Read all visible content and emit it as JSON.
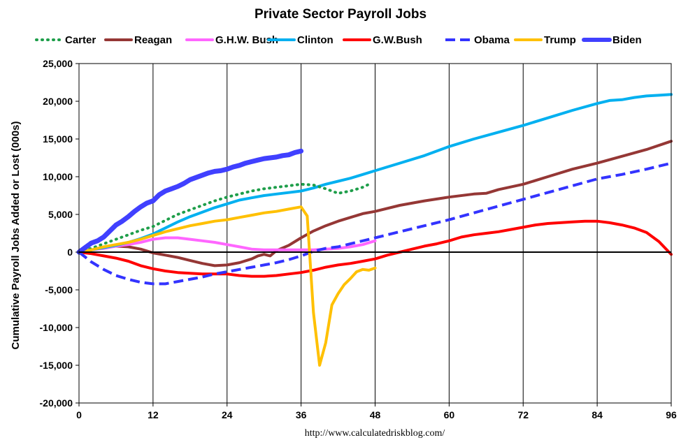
{
  "chart_data": {
    "type": "line",
    "title": "Private Sector Payroll Jobs",
    "xlabel": "",
    "ylabel": "Cumulative Payroll Jobs Added or  Lost (000s)",
    "source": "http://www.calculatedriskblog.com/",
    "xlim": [
      0,
      96
    ],
    "ylim": [
      -20000,
      25000
    ],
    "xticks": [
      0,
      12,
      24,
      36,
      48,
      60,
      72,
      84,
      96
    ],
    "yticks": [
      -20000,
      -15000,
      -10000,
      -5000,
      0,
      5000,
      10000,
      15000,
      20000,
      25000
    ],
    "xtick_labels": [
      "0",
      "12",
      "24",
      "36",
      "48",
      "60",
      "72",
      "84",
      "96"
    ],
    "ytick_labels": [
      "-20,000",
      "-15,000",
      "-10,000",
      "-5,000",
      "0",
      "5,000",
      "10,000",
      "15,000",
      "20,000",
      "25,000"
    ],
    "grid": "vertical",
    "legend_position": "top",
    "series": [
      {
        "name": "Carter",
        "color": "#1e9e4a",
        "style": "dotted",
        "points": [
          [
            0,
            0
          ],
          [
            2,
            500
          ],
          [
            4,
            1100
          ],
          [
            6,
            1700
          ],
          [
            8,
            2300
          ],
          [
            10,
            2900
          ],
          [
            12,
            3400
          ],
          [
            14,
            4200
          ],
          [
            16,
            5000
          ],
          [
            18,
            5600
          ],
          [
            20,
            6200
          ],
          [
            22,
            6800
          ],
          [
            24,
            7300
          ],
          [
            26,
            7700
          ],
          [
            28,
            8100
          ],
          [
            30,
            8400
          ],
          [
            32,
            8600
          ],
          [
            34,
            8800
          ],
          [
            36,
            9000
          ],
          [
            38,
            8900
          ],
          [
            40,
            8400
          ],
          [
            42,
            7800
          ],
          [
            44,
            8100
          ],
          [
            46,
            8600
          ],
          [
            47,
            9000
          ]
        ]
      },
      {
        "name": "Reagan",
        "color": "#953735",
        "style": "solid",
        "points": [
          [
            0,
            0
          ],
          [
            2,
            300
          ],
          [
            4,
            600
          ],
          [
            6,
            800
          ],
          [
            8,
            700
          ],
          [
            10,
            400
          ],
          [
            12,
            -100
          ],
          [
            14,
            -400
          ],
          [
            16,
            -700
          ],
          [
            18,
            -1100
          ],
          [
            20,
            -1500
          ],
          [
            22,
            -1800
          ],
          [
            24,
            -1700
          ],
          [
            26,
            -1400
          ],
          [
            28,
            -900
          ],
          [
            29,
            -500
          ],
          [
            30,
            -300
          ],
          [
            31,
            -500
          ],
          [
            32,
            200
          ],
          [
            34,
            900
          ],
          [
            36,
            1900
          ],
          [
            38,
            2800
          ],
          [
            40,
            3500
          ],
          [
            42,
            4100
          ],
          [
            44,
            4600
          ],
          [
            46,
            5100
          ],
          [
            48,
            5400
          ],
          [
            52,
            6200
          ],
          [
            56,
            6800
          ],
          [
            60,
            7300
          ],
          [
            64,
            7700
          ],
          [
            66,
            7800
          ],
          [
            68,
            8300
          ],
          [
            72,
            9000
          ],
          [
            76,
            10000
          ],
          [
            80,
            11000
          ],
          [
            84,
            11800
          ],
          [
            88,
            12700
          ],
          [
            92,
            13600
          ],
          [
            96,
            14700
          ]
        ]
      },
      {
        "name": "G.H.W. Bush",
        "color": "#ff66ff",
        "style": "solid",
        "points": [
          [
            0,
            0
          ],
          [
            2,
            300
          ],
          [
            4,
            500
          ],
          [
            6,
            800
          ],
          [
            8,
            1000
          ],
          [
            10,
            1300
          ],
          [
            12,
            1700
          ],
          [
            14,
            1900
          ],
          [
            16,
            1900
          ],
          [
            18,
            1700
          ],
          [
            20,
            1500
          ],
          [
            22,
            1300
          ],
          [
            24,
            1000
          ],
          [
            26,
            700
          ],
          [
            28,
            400
          ],
          [
            30,
            300
          ],
          [
            32,
            300
          ],
          [
            34,
            300
          ],
          [
            36,
            300
          ],
          [
            38,
            300
          ],
          [
            40,
            400
          ],
          [
            42,
            500
          ],
          [
            44,
            700
          ],
          [
            46,
            1000
          ],
          [
            48,
            1500
          ]
        ]
      },
      {
        "name": "Clinton",
        "color": "#00b0f0",
        "style": "solid",
        "points": [
          [
            0,
            0
          ],
          [
            2,
            300
          ],
          [
            4,
            600
          ],
          [
            6,
            900
          ],
          [
            8,
            1300
          ],
          [
            10,
            1800
          ],
          [
            12,
            2400
          ],
          [
            14,
            3200
          ],
          [
            16,
            4000
          ],
          [
            18,
            4700
          ],
          [
            20,
            5300
          ],
          [
            22,
            5900
          ],
          [
            24,
            6400
          ],
          [
            26,
            6900
          ],
          [
            28,
            7200
          ],
          [
            30,
            7500
          ],
          [
            32,
            7700
          ],
          [
            34,
            7900
          ],
          [
            36,
            8100
          ],
          [
            38,
            8500
          ],
          [
            40,
            9000
          ],
          [
            42,
            9400
          ],
          [
            44,
            9800
          ],
          [
            46,
            10300
          ],
          [
            48,
            10800
          ],
          [
            52,
            11800
          ],
          [
            56,
            12800
          ],
          [
            60,
            14000
          ],
          [
            64,
            15000
          ],
          [
            68,
            15900
          ],
          [
            72,
            16800
          ],
          [
            76,
            17800
          ],
          [
            80,
            18800
          ],
          [
            84,
            19700
          ],
          [
            86,
            20100
          ],
          [
            88,
            20200
          ],
          [
            90,
            20500
          ],
          [
            92,
            20700
          ],
          [
            94,
            20800
          ],
          [
            96,
            20900
          ]
        ]
      },
      {
        "name": "G.W.Bush",
        "color": "#ff0000",
        "style": "solid",
        "points": [
          [
            0,
            0
          ],
          [
            2,
            -200
          ],
          [
            4,
            -500
          ],
          [
            6,
            -800
          ],
          [
            8,
            -1200
          ],
          [
            10,
            -1800
          ],
          [
            12,
            -2200
          ],
          [
            14,
            -2500
          ],
          [
            16,
            -2700
          ],
          [
            18,
            -2800
          ],
          [
            20,
            -2900
          ],
          [
            22,
            -2900
          ],
          [
            24,
            -2900
          ],
          [
            26,
            -3100
          ],
          [
            28,
            -3200
          ],
          [
            30,
            -3200
          ],
          [
            32,
            -3100
          ],
          [
            34,
            -2900
          ],
          [
            36,
            -2700
          ],
          [
            38,
            -2400
          ],
          [
            40,
            -2000
          ],
          [
            42,
            -1700
          ],
          [
            44,
            -1500
          ],
          [
            46,
            -1200
          ],
          [
            48,
            -900
          ],
          [
            50,
            -400
          ],
          [
            52,
            0
          ],
          [
            54,
            400
          ],
          [
            56,
            800
          ],
          [
            58,
            1100
          ],
          [
            60,
            1500
          ],
          [
            62,
            2000
          ],
          [
            64,
            2300
          ],
          [
            66,
            2500
          ],
          [
            68,
            2700
          ],
          [
            70,
            3000
          ],
          [
            72,
            3300
          ],
          [
            74,
            3600
          ],
          [
            76,
            3800
          ],
          [
            78,
            3900
          ],
          [
            80,
            4000
          ],
          [
            82,
            4100
          ],
          [
            84,
            4100
          ],
          [
            86,
            3900
          ],
          [
            88,
            3600
          ],
          [
            90,
            3200
          ],
          [
            92,
            2600
          ],
          [
            94,
            1400
          ],
          [
            96,
            -300
          ]
        ]
      },
      {
        "name": "Obama",
        "color": "#3333ff",
        "style": "dashed",
        "points": [
          [
            0,
            0
          ],
          [
            2,
            -1300
          ],
          [
            4,
            -2300
          ],
          [
            6,
            -3100
          ],
          [
            8,
            -3600
          ],
          [
            10,
            -4000
          ],
          [
            12,
            -4200
          ],
          [
            14,
            -4200
          ],
          [
            16,
            -3900
          ],
          [
            18,
            -3600
          ],
          [
            20,
            -3300
          ],
          [
            22,
            -2900
          ],
          [
            24,
            -2600
          ],
          [
            26,
            -2300
          ],
          [
            28,
            -2000
          ],
          [
            30,
            -1700
          ],
          [
            32,
            -1400
          ],
          [
            34,
            -1000
          ],
          [
            36,
            -500
          ],
          [
            38,
            100
          ],
          [
            40,
            500
          ],
          [
            42,
            700
          ],
          [
            44,
            1100
          ],
          [
            46,
            1500
          ],
          [
            48,
            1900
          ],
          [
            52,
            2700
          ],
          [
            56,
            3500
          ],
          [
            60,
            4300
          ],
          [
            64,
            5200
          ],
          [
            68,
            6100
          ],
          [
            72,
            7000
          ],
          [
            76,
            7900
          ],
          [
            80,
            8800
          ],
          [
            84,
            9700
          ],
          [
            88,
            10300
          ],
          [
            92,
            11000
          ],
          [
            96,
            11800
          ]
        ]
      },
      {
        "name": "Trump",
        "color": "#ffc000",
        "style": "solid",
        "points": [
          [
            0,
            0
          ],
          [
            2,
            300
          ],
          [
            4,
            700
          ],
          [
            6,
            1000
          ],
          [
            8,
            1300
          ],
          [
            10,
            1700
          ],
          [
            12,
            2200
          ],
          [
            14,
            2700
          ],
          [
            16,
            3100
          ],
          [
            18,
            3500
          ],
          [
            20,
            3800
          ],
          [
            22,
            4100
          ],
          [
            24,
            4300
          ],
          [
            26,
            4600
          ],
          [
            28,
            4900
          ],
          [
            30,
            5200
          ],
          [
            32,
            5400
          ],
          [
            34,
            5700
          ],
          [
            36,
            6000
          ],
          [
            37,
            4800
          ],
          [
            38,
            -8000
          ],
          [
            39,
            -15000
          ],
          [
            40,
            -12000
          ],
          [
            41,
            -7000
          ],
          [
            42,
            -5500
          ],
          [
            43,
            -4300
          ],
          [
            44,
            -3500
          ],
          [
            45,
            -2600
          ],
          [
            46,
            -2300
          ],
          [
            47,
            -2400
          ],
          [
            48,
            -2100
          ]
        ]
      },
      {
        "name": "Biden",
        "color": "#4040ff",
        "style": "thick",
        "points": [
          [
            0,
            0
          ],
          [
            1,
            600
          ],
          [
            2,
            1200
          ],
          [
            3,
            1500
          ],
          [
            4,
            2000
          ],
          [
            5,
            2800
          ],
          [
            6,
            3600
          ],
          [
            7,
            4100
          ],
          [
            8,
            4700
          ],
          [
            9,
            5400
          ],
          [
            10,
            6000
          ],
          [
            11,
            6500
          ],
          [
            12,
            6800
          ],
          [
            13,
            7600
          ],
          [
            14,
            8100
          ],
          [
            15,
            8400
          ],
          [
            16,
            8700
          ],
          [
            17,
            9100
          ],
          [
            18,
            9600
          ],
          [
            19,
            9900
          ],
          [
            20,
            10200
          ],
          [
            21,
            10500
          ],
          [
            22,
            10700
          ],
          [
            23,
            10800
          ],
          [
            24,
            11000
          ],
          [
            25,
            11300
          ],
          [
            26,
            11500
          ],
          [
            27,
            11800
          ],
          [
            28,
            12000
          ],
          [
            29,
            12200
          ],
          [
            30,
            12400
          ],
          [
            31,
            12500
          ],
          [
            32,
            12600
          ],
          [
            33,
            12800
          ],
          [
            34,
            12900
          ],
          [
            35,
            13200
          ],
          [
            36,
            13400
          ]
        ]
      }
    ]
  }
}
